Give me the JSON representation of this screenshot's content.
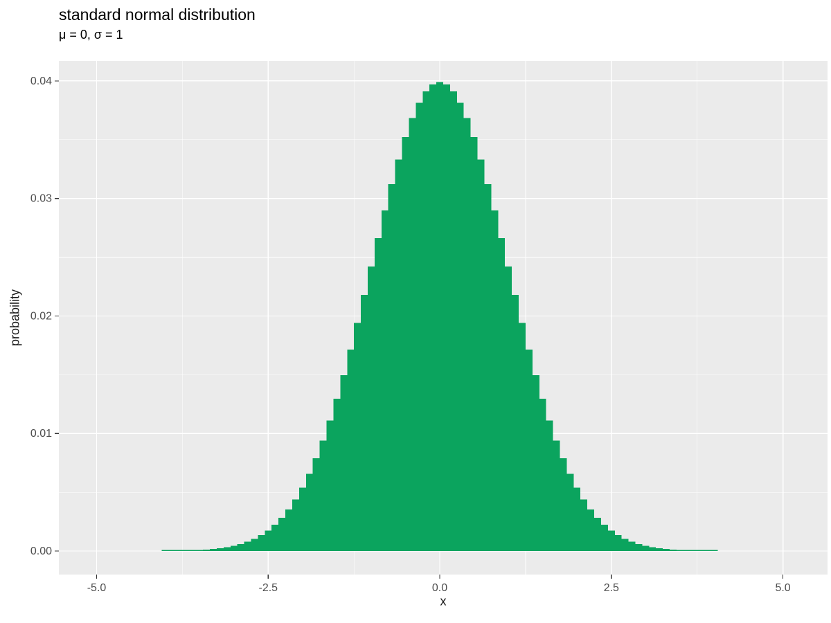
{
  "chart_data": {
    "type": "bar",
    "title": "standard normal distribution",
    "subtitle": "μ = 0, σ = 1",
    "xlabel": "x",
    "ylabel": "probability",
    "legend": "none",
    "grid": "on",
    "panel_bg": "#EBEBEB",
    "grid_major_color": "#FFFFFF",
    "grid_minor_color": "#FFFFFF",
    "bar_color": "#0BA45E",
    "tick_color": "#333333",
    "tick_label_color": "#4D4D4D",
    "xlim": [
      -5.55,
      5.65
    ],
    "ylim": [
      -0.002,
      0.0417
    ],
    "x_ticks": [
      -5.0,
      -2.5,
      0.0,
      2.5,
      5.0
    ],
    "x_tick_labels": [
      "-5.0",
      "-2.5",
      "0.0",
      "2.5",
      "5.0"
    ],
    "x_minor_ticks": [
      -3.75,
      -1.25,
      1.25,
      3.75
    ],
    "y_ticks": [
      0.0,
      0.01,
      0.02,
      0.03,
      0.04
    ],
    "y_tick_labels": [
      "0.00",
      "0.01",
      "0.02",
      "0.03",
      "0.04"
    ],
    "y_minor_ticks": [
      0.005,
      0.015,
      0.025,
      0.035
    ],
    "bin_width": 0.1,
    "x_start": -4.0,
    "x_step": 0.1,
    "values": [
      1e-05,
      2e-05,
      3e-05,
      4e-05,
      6e-05,
      9e-05,
      0.00012,
      0.00017,
      0.00024,
      0.00033,
      0.00044,
      0.0006,
      0.00079,
      0.00104,
      0.00136,
      0.00175,
      0.00224,
      0.00283,
      0.00355,
      0.0044,
      0.0054,
      0.00656,
      0.0079,
      0.0094,
      0.01109,
      0.01295,
      0.01497,
      0.01714,
      0.01942,
      0.02179,
      0.0242,
      0.02661,
      0.02897,
      0.03123,
      0.03332,
      0.03521,
      0.03683,
      0.03814,
      0.0391,
      0.03969,
      0.03989,
      0.03969,
      0.0391,
      0.03814,
      0.03683,
      0.03521,
      0.03332,
      0.03123,
      0.02897,
      0.02661,
      0.0242,
      0.02179,
      0.01942,
      0.01714,
      0.01497,
      0.01295,
      0.01109,
      0.0094,
      0.0079,
      0.00656,
      0.0054,
      0.0044,
      0.00355,
      0.00283,
      0.00224,
      0.00175,
      0.00136,
      0.00104,
      0.00079,
      0.0006,
      0.00044,
      0.00033,
      0.00024,
      0.00017,
      0.00012,
      9e-05,
      6e-05,
      4e-05,
      3e-05,
      2e-05,
      1e-05
    ]
  }
}
